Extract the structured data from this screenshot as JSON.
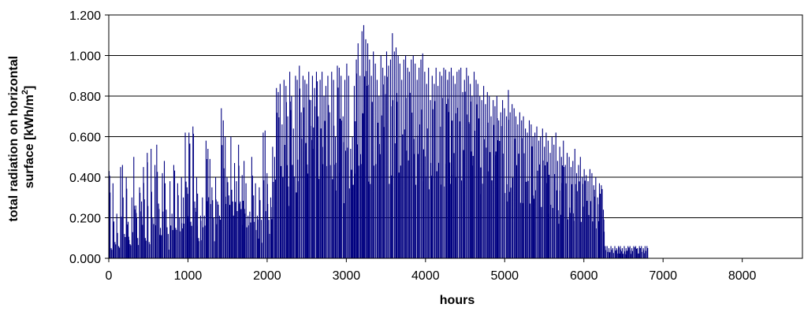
{
  "chart_data": {
    "type": "area",
    "title": "",
    "xlabel": "hours",
    "ylabel_line1": "total radiation on horizontal",
    "ylabel_line2_prefix": "surface [kWh/m",
    "ylabel_sup": "2",
    "ylabel_line2_suffix": "]",
    "xlim": [
      0,
      8760
    ],
    "ylim": [
      0,
      1.2
    ],
    "x_ticks": [
      "0",
      "1000",
      "2000",
      "3000",
      "4000",
      "5000",
      "6000",
      "7000",
      "8000"
    ],
    "y_ticks": [
      "0.000",
      "0.200",
      "0.400",
      "0.600",
      "0.800",
      "1.000",
      "1.200"
    ],
    "grid": "horizontal",
    "series": [
      {
        "color": "#000080",
        "resolution": "daily peak (kWh/m2), one value per 24 hours",
        "daily_peak": [
          0.43,
          0.05,
          0.37,
          0.08,
          0.22,
          0.06,
          0.45,
          0.46,
          0.12,
          0.4,
          0.18,
          0.07,
          0.3,
          0.5,
          0.26,
          0.1,
          0.35,
          0.28,
          0.45,
          0.1,
          0.52,
          0.08,
          0.54,
          0.2,
          0.46,
          0.56,
          0.27,
          0.15,
          0.42,
          0.48,
          0.24,
          0.12,
          0.38,
          0.22,
          0.46,
          0.15,
          0.37,
          0.2,
          0.4,
          0.3,
          0.62,
          0.35,
          0.62,
          0.18,
          0.65,
          0.28,
          0.4,
          0.1,
          0.21,
          0.3,
          0.21,
          0.58,
          0.54,
          0.49,
          0.35,
          0.2,
          0.4,
          0.28,
          0.21,
          0.74,
          0.68,
          0.6,
          0.4,
          0.31,
          0.6,
          0.28,
          0.47,
          0.38,
          0.56,
          0.28,
          0.41,
          0.48,
          0.37,
          0.21,
          0.23,
          0.5,
          0.31,
          0.37,
          0.21,
          0.35,
          0.19,
          0.62,
          0.63,
          0.42,
          0.19,
          0.3,
          0.55,
          0.5,
          0.84,
          0.82,
          0.86,
          0.66,
          0.88,
          0.85,
          0.7,
          0.92,
          0.8,
          0.64,
          0.9,
          0.88,
          0.95,
          0.72,
          0.9,
          0.88,
          0.86,
          0.92,
          0.78,
          0.9,
          0.84,
          0.92,
          0.7,
          0.88,
          0.92,
          0.8,
          0.85,
          0.9,
          0.72,
          0.92,
          0.88,
          0.6,
          0.95,
          0.94,
          0.9,
          0.7,
          0.88,
          0.96,
          0.9,
          0.54,
          0.6,
          0.85,
          0.98,
          1.06,
          0.9,
          1.12,
          1.15,
          1.08,
          1.06,
          0.98,
          0.9,
          1.02,
          0.96,
          0.88,
          0.8,
          1.0,
          0.94,
          0.9,
          1.02,
          0.95,
          0.98,
          1.11,
          1.02,
          1.04,
          1.0,
          0.96,
          0.88,
          0.98,
          1.0,
          0.94,
          0.92,
          0.98,
          1.0,
          0.96,
          0.88,
          0.94,
          0.98,
          1.01,
          0.92,
          0.86,
          0.94,
          0.78,
          0.9,
          0.86,
          0.94,
          0.85,
          0.92,
          0.9,
          0.94,
          0.93,
          0.88,
          0.92,
          0.94,
          0.9,
          0.86,
          0.92,
          0.93,
          0.94,
          0.82,
          0.88,
          0.94,
          0.9,
          0.86,
          0.8,
          0.92,
          0.88,
          0.86,
          0.8,
          0.78,
          0.85,
          0.76,
          0.82,
          0.8,
          0.7,
          0.78,
          0.75,
          0.8,
          0.68,
          0.72,
          0.78,
          0.74,
          0.7,
          0.83,
          0.72,
          0.76,
          0.74,
          0.7,
          0.66,
          0.72,
          0.68,
          0.7,
          0.64,
          0.62,
          0.68,
          0.66,
          0.6,
          0.62,
          0.65,
          0.58,
          0.6,
          0.64,
          0.55,
          0.62,
          0.58,
          0.52,
          0.6,
          0.56,
          0.62,
          0.48,
          0.55,
          0.5,
          0.58,
          0.46,
          0.52,
          0.5,
          0.45,
          0.48,
          0.54,
          0.42,
          0.46,
          0.5,
          0.4,
          0.44,
          0.41,
          0.38,
          0.44,
          0.42,
          0.36,
          0.4,
          0.3,
          0.37,
          0.36,
          0.24,
          0.06,
          0.06,
          0.05,
          0.06,
          0.05,
          0.06,
          0.05,
          0.06,
          0.06,
          0.05,
          0.06,
          0.05,
          0.06,
          0.06,
          0.05,
          0.06,
          0.06,
          0.05,
          0.06,
          0.06,
          0.05,
          0.06,
          0.06
        ]
      }
    ]
  }
}
